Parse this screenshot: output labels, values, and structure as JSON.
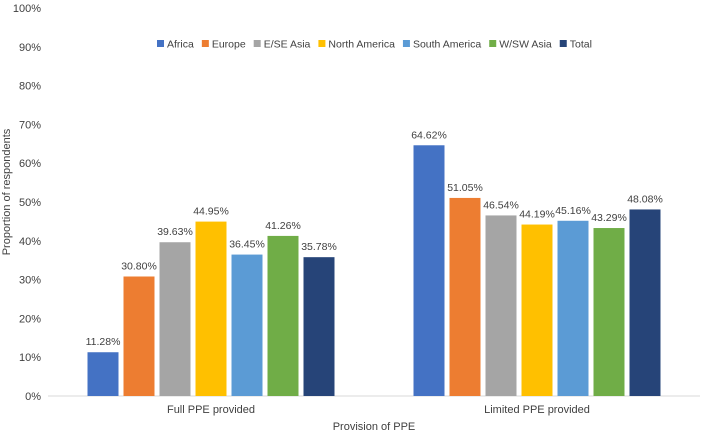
{
  "chart_data": {
    "type": "bar",
    "title": "",
    "xlabel": "Provision of PPE",
    "ylabel": "Proportion of respondents",
    "ylim": [
      0,
      100
    ],
    "yticks": [
      "0%",
      "10%",
      "20%",
      "30%",
      "40%",
      "50%",
      "60%",
      "70%",
      "80%",
      "90%",
      "100%"
    ],
    "categories": [
      "Full PPE provided",
      "Limited PPE provided"
    ],
    "grid": false,
    "legend_position": "top",
    "series": [
      {
        "name": "Africa",
        "color": "#4472C4",
        "values": [
          11.28,
          64.62
        ],
        "labels": [
          "11.28%",
          "64.62%"
        ]
      },
      {
        "name": "Europe",
        "color": "#ED7D31",
        "values": [
          30.8,
          51.05
        ],
        "labels": [
          "30.80%",
          "51.05%"
        ]
      },
      {
        "name": "E/SE Asia",
        "color": "#A5A5A5",
        "values": [
          39.63,
          46.54
        ],
        "labels": [
          "39.63%",
          "46.54%"
        ]
      },
      {
        "name": "North America",
        "color": "#FFC000",
        "values": [
          44.95,
          44.19
        ],
        "labels": [
          "44.95%",
          "44.19%"
        ]
      },
      {
        "name": "South America",
        "color": "#5B9BD5",
        "values": [
          36.45,
          45.16
        ],
        "labels": [
          "36.45%",
          "45.16%"
        ]
      },
      {
        "name": "W/SW Asia",
        "color": "#70AD47",
        "values": [
          41.26,
          43.29
        ],
        "labels": [
          "41.26%",
          "43.29%"
        ]
      },
      {
        "name": "Total",
        "color": "#264478",
        "values": [
          35.78,
          48.08
        ],
        "labels": [
          "35.78%",
          "48.08%"
        ]
      }
    ]
  }
}
